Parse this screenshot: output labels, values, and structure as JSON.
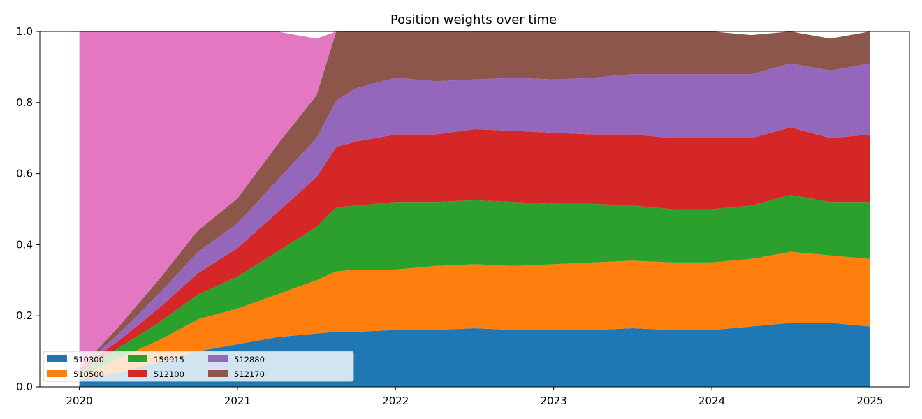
{
  "chart_data": {
    "type": "area",
    "stacked": true,
    "title": "Position weights over time",
    "xlabel": "",
    "ylabel": "",
    "xlim": [
      2019.75,
      2025.25
    ],
    "ylim": [
      0,
      1
    ],
    "x_ticks": [
      2020,
      2021,
      2022,
      2023,
      2024,
      2025
    ],
    "x_tick_labels": [
      "2020",
      "2021",
      "2022",
      "2023",
      "2024",
      "2025"
    ],
    "y_ticks": [
      0,
      0.2,
      0.4,
      0.6,
      0.8,
      1.0
    ],
    "y_tick_labels": [
      "0.0",
      "0.2",
      "0.4",
      "0.6",
      "0.8",
      "1.0"
    ],
    "grid": false,
    "legend": {
      "placement": "lower-left",
      "columns": 4
    },
    "x": [
      2020.0,
      2020.25,
      2020.5,
      2020.75,
      2021.0,
      2021.25,
      2021.5,
      2021.625,
      2021.75,
      2022.0,
      2022.25,
      2022.5,
      2022.75,
      2023.0,
      2023.25,
      2023.5,
      2023.75,
      2024.0,
      2024.25,
      2024.5,
      2024.75,
      2025.0
    ],
    "series": [
      {
        "name": "510300",
        "color": "#1f77b4",
        "values": [
          0.02,
          0.04,
          0.07,
          0.1,
          0.12,
          0.14,
          0.15,
          0.155,
          0.155,
          0.16,
          0.16,
          0.165,
          0.16,
          0.16,
          0.16,
          0.165,
          0.16,
          0.16,
          0.17,
          0.18,
          0.18,
          0.17
        ]
      },
      {
        "name": "510500",
        "color": "#ff7f0e",
        "values": [
          0.01,
          0.04,
          0.06,
          0.09,
          0.1,
          0.12,
          0.15,
          0.17,
          0.175,
          0.17,
          0.18,
          0.18,
          0.18,
          0.185,
          0.19,
          0.19,
          0.19,
          0.19,
          0.19,
          0.2,
          0.19,
          0.19
        ]
      },
      {
        "name": "159915",
        "color": "#2ca02c",
        "values": [
          0.01,
          0.03,
          0.05,
          0.07,
          0.09,
          0.12,
          0.15,
          0.18,
          0.18,
          0.19,
          0.18,
          0.18,
          0.18,
          0.17,
          0.165,
          0.155,
          0.15,
          0.15,
          0.15,
          0.16,
          0.15,
          0.16
        ]
      },
      {
        "name": "512100",
        "color": "#d62728",
        "values": [
          0.01,
          0.02,
          0.04,
          0.06,
          0.08,
          0.11,
          0.14,
          0.17,
          0.18,
          0.19,
          0.19,
          0.2,
          0.2,
          0.2,
          0.195,
          0.2,
          0.2,
          0.2,
          0.19,
          0.19,
          0.18,
          0.19
        ]
      },
      {
        "name": "512880",
        "color": "#9467bd",
        "values": [
          0.0,
          0.02,
          0.04,
          0.06,
          0.07,
          0.09,
          0.11,
          0.13,
          0.15,
          0.16,
          0.15,
          0.14,
          0.15,
          0.15,
          0.16,
          0.17,
          0.18,
          0.18,
          0.18,
          0.18,
          0.19,
          0.2
        ]
      },
      {
        "name": "512170",
        "color": "#8c564b",
        "values": [
          0.0,
          0.02,
          0.04,
          0.06,
          0.07,
          0.1,
          0.12,
          0.195,
          0.16,
          0.13,
          0.14,
          0.135,
          0.13,
          0.135,
          0.13,
          0.12,
          0.12,
          0.12,
          0.11,
          0.09,
          0.09,
          0.09
        ]
      },
      {
        "name": "",
        "color": "#e377c2",
        "values": [
          0.95,
          0.83,
          0.7,
          0.56,
          0.47,
          0.32,
          0.16,
          0.0,
          0.0,
          0.0,
          0.0,
          0.0,
          0.0,
          0.0,
          0.0,
          0.0,
          0.0,
          0.0,
          0.0,
          0.0,
          0.0,
          0.0
        ]
      }
    ]
  }
}
